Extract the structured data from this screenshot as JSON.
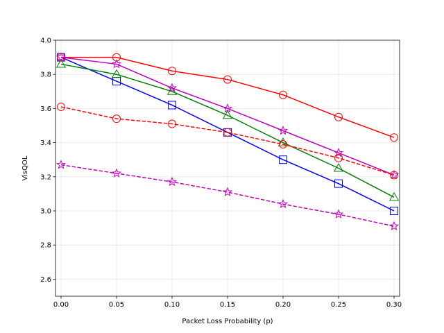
{
  "chart_data": {
    "type": "line",
    "title": "",
    "xlabel": "Packet Loss Probability (p)",
    "ylabel": "VisQOL",
    "xlim": [
      -0.005,
      0.305
    ],
    "ylim": [
      2.5,
      4.0
    ],
    "xticks": [
      0.0,
      0.05,
      0.1,
      0.15,
      0.2,
      0.25,
      0.3
    ],
    "xtick_labels": [
      "0.00",
      "0.05",
      "0.10",
      "0.15",
      "0.20",
      "0.25",
      "0.30"
    ],
    "yticks": [
      2.6,
      2.8,
      3.0,
      3.2,
      3.4,
      3.6,
      3.8,
      4.0
    ],
    "ytick_labels": [
      "2.6",
      "2.8",
      "3.0",
      "3.2",
      "3.4",
      "3.6",
      "3.8",
      "4.0"
    ],
    "grid": true,
    "x": [
      0.0,
      0.05,
      0.1,
      0.15,
      0.2,
      0.25,
      0.3
    ],
    "series": [
      {
        "color": "#0000ff",
        "linestyle": "solid",
        "marker": "square",
        "values": [
          3.9,
          3.76,
          3.62,
          3.46,
          3.3,
          3.16,
          3.0
        ]
      },
      {
        "color": "#008000",
        "linestyle": "solid",
        "marker": "triangle",
        "values": [
          3.86,
          3.8,
          3.7,
          3.56,
          3.4,
          3.25,
          3.08
        ]
      },
      {
        "color": "#ff0000",
        "linestyle": "solid",
        "marker": "circle",
        "values": [
          3.9,
          3.9,
          3.82,
          3.77,
          3.68,
          3.55,
          3.43
        ]
      },
      {
        "color": "#bf00bf",
        "linestyle": "solid",
        "marker": "star",
        "values": [
          3.9,
          3.86,
          3.72,
          3.6,
          3.47,
          3.34,
          3.21
        ]
      },
      {
        "color": "#ff0000",
        "linestyle": "dashed",
        "marker": "circle",
        "values": [
          3.61,
          3.54,
          3.51,
          3.46,
          3.39,
          3.31,
          3.21
        ]
      },
      {
        "color": "#bf00bf",
        "linestyle": "dashed",
        "marker": "star",
        "values": [
          3.27,
          3.22,
          3.17,
          3.11,
          3.04,
          2.98,
          2.91
        ]
      }
    ]
  }
}
